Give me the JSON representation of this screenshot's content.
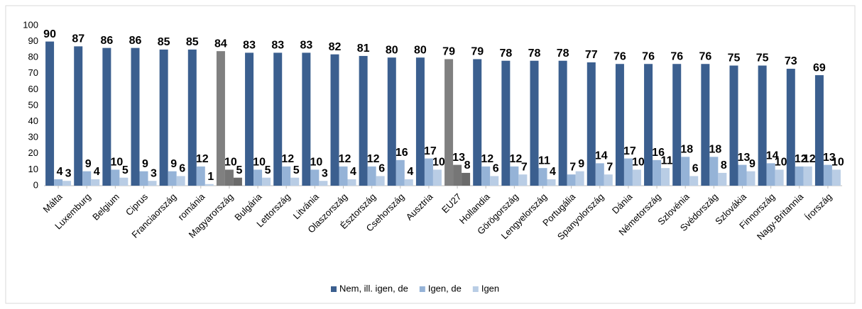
{
  "chart_data": {
    "type": "bar",
    "categories": [
      "Málta",
      "Luxemburg",
      "Belgium",
      "Ciprus",
      "Franciaország",
      "románia",
      "Magyarország",
      "Bulgária",
      "Lettország",
      "Litvánia",
      "Olaszország",
      "Észtország",
      "Csehország",
      "Ausztria",
      "EU27",
      "Hollandia",
      "Görögország",
      "Lengyelország",
      "Portugália",
      "Spanyolország",
      "Dánia",
      "Németország",
      "Szlovénia",
      "Svédország",
      "Szlovákia",
      "Finnország",
      "Nagy-Britannia",
      "Írország"
    ],
    "series": [
      {
        "name": "Nem, ill. igen, de",
        "color": "#3b5f8f",
        "highlight_color": "#808080",
        "values": [
          90,
          87,
          86,
          86,
          85,
          85,
          84,
          83,
          83,
          83,
          82,
          81,
          80,
          80,
          79,
          79,
          78,
          78,
          78,
          77,
          76,
          76,
          76,
          76,
          75,
          75,
          73,
          69
        ]
      },
      {
        "name": "Igen, de",
        "color": "#95b3d7",
        "highlight_color": "#767676",
        "values": [
          4,
          9,
          10,
          9,
          9,
          12,
          10,
          10,
          12,
          10,
          12,
          12,
          16,
          17,
          13,
          12,
          12,
          11,
          7,
          14,
          17,
          16,
          18,
          18,
          13,
          14,
          12,
          13
        ]
      },
      {
        "name": "Igen",
        "color": "#b9cde5",
        "highlight_color": "#6a6a6a",
        "values": [
          3,
          4,
          5,
          3,
          6,
          1,
          5,
          5,
          5,
          3,
          4,
          6,
          4,
          10,
          8,
          6,
          7,
          4,
          9,
          7,
          10,
          11,
          6,
          8,
          9,
          10,
          12,
          10
        ]
      }
    ],
    "highlight_categories": [
      "Magyarország",
      "EU27"
    ],
    "ylim": [
      0,
      100
    ],
    "yticks": [
      0,
      10,
      20,
      30,
      40,
      50,
      60,
      70,
      80,
      90,
      100
    ],
    "grid": false,
    "legend": "bottom"
  }
}
